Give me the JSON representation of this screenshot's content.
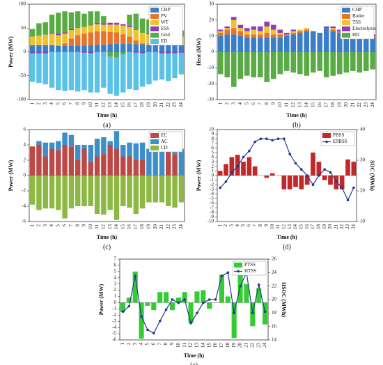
{
  "chart_data": [
    {
      "type": "bar",
      "caption": "(a)",
      "xlabel": "Time (h)",
      "ylabel": "Power (MW)",
      "legend": "upper right",
      "categories": [
        "1",
        "2",
        "3",
        "4",
        "5",
        "6",
        "7",
        "8",
        "9",
        "10",
        "11",
        "12",
        "13",
        "14",
        "15",
        "16",
        "17",
        "18",
        "19",
        "20",
        "21",
        "22",
        "23",
        "24"
      ],
      "ylim": [
        -100,
        100
      ],
      "yticks": [
        -100,
        -50,
        0,
        50,
        100
      ],
      "series": [
        {
          "name": "CHP",
          "color": "#3a7dc9",
          "values": [
            14,
            14,
            14,
            14,
            13,
            13,
            13,
            13,
            13,
            14,
            15,
            15,
            16,
            17,
            17,
            17,
            16,
            16,
            15,
            15,
            14,
            14,
            14,
            14
          ]
        },
        {
          "name": "PV",
          "color": "#e8742a",
          "values": [
            0,
            0,
            0,
            0,
            0,
            5,
            15,
            22,
            25,
            27,
            28,
            28,
            26,
            24,
            20,
            15,
            8,
            2,
            0,
            0,
            0,
            0,
            0,
            0
          ]
        },
        {
          "name": "WT",
          "color": "#f2c12e",
          "values": [
            18,
            20,
            22,
            24,
            22,
            20,
            18,
            15,
            14,
            14,
            15,
            14,
            15,
            16,
            18,
            20,
            22,
            22,
            22,
            20,
            20,
            22,
            20,
            18
          ]
        },
        {
          "name": "ESS",
          "color": "#8a3fb8",
          "values": [
            -3,
            -3,
            -3,
            2,
            3,
            3,
            2,
            0,
            -2,
            -3,
            3,
            3,
            4,
            4,
            3,
            3,
            -2,
            -3,
            2,
            3,
            -3,
            -3,
            -3,
            -2
          ]
        },
        {
          "name": "Grid",
          "color": "#5aab45",
          "values": [
            16,
            26,
            26,
            38,
            44,
            44,
            35,
            35,
            28,
            30,
            24,
            15,
            -10,
            -12,
            -5,
            23,
            34,
            30,
            29,
            22,
            21,
            22,
            21,
            13
          ]
        },
        {
          "name": "ED",
          "color": "#5bc2e7",
          "values": [
            -60,
            -62,
            -65,
            -75,
            -80,
            -82,
            -80,
            -83,
            -78,
            -82,
            -85,
            -75,
            -78,
            -80,
            -80,
            -78,
            -78,
            -70,
            -68,
            -60,
            -55,
            -58,
            -52,
            -45
          ]
        }
      ]
    },
    {
      "type": "bar",
      "caption": "(b)",
      "xlabel": "Time (h)",
      "ylabel": "Heat (MW)",
      "legend": "upper right",
      "categories": [
        "1",
        "2",
        "3",
        "4",
        "5",
        "6",
        "7",
        "8",
        "9",
        "10",
        "11",
        "12",
        "13",
        "14",
        "15",
        "16",
        "17",
        "18",
        "19",
        "20",
        "21",
        "22",
        "23",
        "24"
      ],
      "ylim": [
        -30,
        30
      ],
      "yticks": [
        -30,
        -20,
        -10,
        0,
        10,
        20,
        30
      ],
      "series": [
        {
          "name": "CHP",
          "color": "#3a7dc9",
          "values": [
            10,
            11,
            11,
            10,
            9,
            9,
            9,
            9,
            9,
            9,
            10,
            11,
            12,
            13,
            13,
            12,
            15,
            13,
            12,
            11,
            10,
            10,
            9,
            9
          ]
        },
        {
          "name": "Boiler",
          "color": "#e8742a",
          "values": [
            2,
            3,
            4,
            3,
            2,
            2,
            2,
            3,
            2,
            2,
            1,
            1,
            1,
            1,
            0,
            0,
            0,
            1,
            1,
            1,
            1,
            1,
            1,
            1
          ]
        },
        {
          "name": "TSS",
          "color": "#f2c12e",
          "values": [
            1,
            1,
            5,
            2,
            2,
            3,
            2,
            4,
            3,
            1,
            0,
            1,
            1,
            1,
            0,
            0,
            0,
            1,
            0,
            0,
            0,
            1,
            1,
            0
          ]
        },
        {
          "name": "Electrolyzer",
          "color": "#8a3fb8",
          "values": [
            1,
            1,
            2,
            2,
            2,
            2,
            3,
            3,
            3,
            2,
            1,
            1,
            0,
            0,
            0,
            0,
            1,
            1,
            1,
            1,
            1,
            1,
            1,
            1
          ]
        },
        {
          "name": "HD",
          "color": "#5aab45",
          "values": [
            -14,
            -16,
            -22,
            -17,
            -15,
            -16,
            -16,
            -19,
            -17,
            -14,
            -12,
            -13,
            -14,
            -15,
            -13,
            -12,
            -16,
            -15,
            -14,
            -13,
            -12,
            -13,
            -12,
            -11
          ]
        }
      ]
    },
    {
      "type": "bar",
      "caption": "(c)",
      "xlabel": "Time (h)",
      "ylabel": "Power (MW)",
      "legend": "upper right",
      "categories": [
        "1",
        "2",
        "3",
        "4",
        "5",
        "6",
        "7",
        "8",
        "9",
        "10",
        "11",
        "12",
        "13",
        "14",
        "15",
        "16",
        "17",
        "18",
        "19",
        "20",
        "21",
        "22",
        "23",
        "24"
      ],
      "ylim": [
        -6,
        6
      ],
      "yticks": [
        -6,
        -4,
        -2,
        0,
        2,
        4,
        6
      ],
      "series": [
        {
          "name": "EC",
          "color": "#b94a48",
          "values": [
            3.8,
            4.0,
            2.5,
            3.5,
            3.3,
            4.0,
            3.8,
            2.0,
            3.5,
            1.8,
            2.5,
            2.8,
            4.0,
            3.5,
            2.5,
            2.5,
            2.0,
            2.0,
            0,
            0,
            0,
            3.8,
            2.8,
            0
          ]
        },
        {
          "name": "AC",
          "color": "#3d8fcc",
          "values": [
            0,
            0.5,
            1.8,
            0.8,
            1.2,
            1.6,
            1.5,
            2.0,
            0.5,
            2.2,
            2.3,
            2.2,
            0.5,
            2.3,
            1.5,
            1.8,
            2.2,
            2.3,
            3.5,
            3.5,
            3.5,
            0.2,
            1.4,
            3.5
          ]
        },
        {
          "name": "CD",
          "color": "#8db843",
          "values": [
            -3.8,
            -4.5,
            -4.3,
            -4.3,
            -4.5,
            -5.6,
            -4.3,
            -4.0,
            -4.0,
            -4.0,
            -5.0,
            -5.1,
            -4.5,
            -5.8,
            -4.0,
            -4.2,
            -5.0,
            -4.3,
            -3.5,
            -3.5,
            -3.5,
            -4.0,
            -4.2,
            -3.5
          ]
        }
      ]
    },
    {
      "type": "bar_line",
      "caption": "(d)",
      "xlabel": "Time (h)",
      "ylabel": "Power (MW)",
      "y2label": "SOC (MWh)",
      "legend": "upper right",
      "categories": [
        "1",
        "2",
        "3",
        "4",
        "5",
        "6",
        "7",
        "8",
        "9",
        "10",
        "11",
        "12",
        "13",
        "14",
        "15",
        "16",
        "17",
        "18",
        "19",
        "20",
        "21",
        "22",
        "23",
        "24"
      ],
      "ylim": [
        -10,
        10
      ],
      "yticks": [
        -10,
        -9,
        -8,
        -7,
        -6,
        -5,
        -4,
        -3,
        -2,
        -1,
        0,
        1,
        2,
        3,
        4,
        5,
        6,
        7,
        8,
        9,
        10
      ],
      "y2lim": [
        10,
        40
      ],
      "y2ticks": [
        10,
        20,
        30,
        40
      ],
      "series": [
        {
          "name": "PBSS",
          "color": "#c0282a",
          "values": [
            1,
            2.5,
            4,
            4.5,
            3,
            4,
            2,
            0,
            -0.5,
            0.5,
            0,
            -3,
            -3,
            -2.5,
            -3,
            -2,
            5,
            3,
            -1,
            -2,
            -3,
            -3,
            3.5,
            3
          ]
        },
        {
          "name": "ESBSS",
          "color": "#1f3a8a",
          "axis": "y2",
          "values": [
            21,
            23,
            26,
            28,
            31,
            33,
            36,
            37,
            37,
            36.5,
            37,
            37,
            32,
            29,
            27,
            25,
            22,
            25,
            27,
            26,
            23,
            21,
            17,
            21
          ]
        }
      ]
    },
    {
      "type": "bar_line",
      "caption": "(e)",
      "xlabel": "Time (h)",
      "ylabel": "Power (MW)",
      "y2label": "HSOC (MWh)",
      "legend": "upper right",
      "categories": [
        "1",
        "2",
        "3",
        "4",
        "5",
        "6",
        "7",
        "8",
        "9",
        "10",
        "11",
        "12",
        "13",
        "14",
        "15",
        "16",
        "17",
        "18",
        "19",
        "20",
        "21",
        "22",
        "23",
        "24"
      ],
      "ylim": [
        -6,
        7
      ],
      "yticks": [
        -6,
        -5,
        -4,
        -3,
        -2,
        -1,
        0,
        1,
        2,
        3,
        4,
        5,
        6,
        7
      ],
      "y2lim": [
        14,
        26
      ],
      "y2ticks": [
        14,
        16,
        18,
        20,
        22,
        24,
        26
      ],
      "series": [
        {
          "name": "PTSS",
          "color": "#33cc33",
          "values": [
            -1.5,
            0.8,
            5,
            -5.8,
            -0.5,
            -1.2,
            1.7,
            1.7,
            -1.2,
            0.8,
            1.7,
            -3.3,
            1.8,
            2,
            -1,
            0,
            4.5,
            1,
            -5.7,
            4.5,
            3,
            -3.8,
            2.3,
            -3.5
          ]
        },
        {
          "name": "HTSS",
          "color": "#1f3a8a",
          "axis": "y2",
          "values": [
            18.2,
            19,
            23.5,
            17.5,
            15.5,
            15,
            16.8,
            18.5,
            20,
            19.5,
            20,
            16.5,
            18,
            19.5,
            20,
            20,
            23.5,
            24,
            18,
            22,
            24,
            18,
            22.2,
            18.2
          ]
        }
      ]
    }
  ]
}
